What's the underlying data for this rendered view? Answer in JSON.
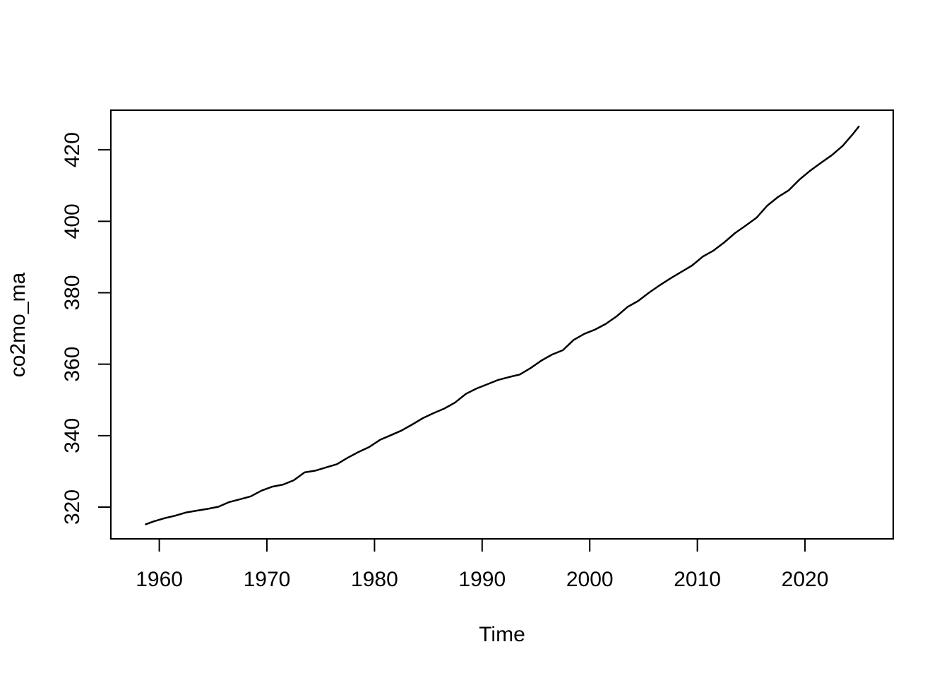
{
  "figure": {
    "background_color": "#ffffff",
    "axis_color": "#000000",
    "text_color": "#000000"
  },
  "chart_data": {
    "type": "line",
    "title": "",
    "xlabel": "Time",
    "ylabel": "co2mo_ma",
    "x_ticks": [
      1960,
      1970,
      1980,
      1990,
      2000,
      2010,
      2020
    ],
    "y_ticks": [
      320,
      340,
      360,
      380,
      400,
      420
    ],
    "xlim": [
      1955.5,
      2028.2
    ],
    "ylim": [
      311.1,
      431.1
    ],
    "grid": false,
    "legend": "none",
    "series": [
      {
        "name": "co2mo_ma",
        "color": "#000000",
        "x": [
          1958.75,
          1959.5,
          1960.5,
          1961.5,
          1962.5,
          1963.5,
          1964.5,
          1965.5,
          1966.5,
          1967.5,
          1968.5,
          1969.5,
          1970.5,
          1971.5,
          1972.5,
          1973.5,
          1974.5,
          1975.5,
          1976.5,
          1977.5,
          1978.5,
          1979.5,
          1980.5,
          1981.5,
          1982.5,
          1983.5,
          1984.5,
          1985.5,
          1986.5,
          1987.5,
          1988.5,
          1989.5,
          1990.5,
          1991.5,
          1992.5,
          1993.5,
          1994.5,
          1995.5,
          1996.5,
          1997.5,
          1998.5,
          1999.5,
          2000.5,
          2001.5,
          2002.5,
          2003.5,
          2004.5,
          2005.5,
          2006.5,
          2007.5,
          2008.5,
          2009.5,
          2010.5,
          2011.5,
          2012.5,
          2013.5,
          2014.5,
          2015.5,
          2016.5,
          2017.5,
          2018.5,
          2019.5,
          2020.5,
          2021.5,
          2022.5,
          2023.5,
          2024.5,
          2025.0
        ],
        "y": [
          315.2,
          316.0,
          316.9,
          317.6,
          318.5,
          319.0,
          319.5,
          320.1,
          321.4,
          322.2,
          323.0,
          324.6,
          325.7,
          326.3,
          327.5,
          329.7,
          330.2,
          331.1,
          332.0,
          333.8,
          335.4,
          336.8,
          338.8,
          340.1,
          341.4,
          343.1,
          344.9,
          346.3,
          347.6,
          349.3,
          351.7,
          353.2,
          354.4,
          355.6,
          356.4,
          357.1,
          358.9,
          361.0,
          362.7,
          363.9,
          366.8,
          368.5,
          369.7,
          371.3,
          373.4,
          376.0,
          377.7,
          380.0,
          382.1,
          384.0,
          385.8,
          387.6,
          390.1,
          391.8,
          394.1,
          396.7,
          398.8,
          401.0,
          404.4,
          406.8,
          408.7,
          411.7,
          414.2,
          416.4,
          418.5,
          421.1,
          424.6,
          426.5
        ]
      }
    ]
  }
}
